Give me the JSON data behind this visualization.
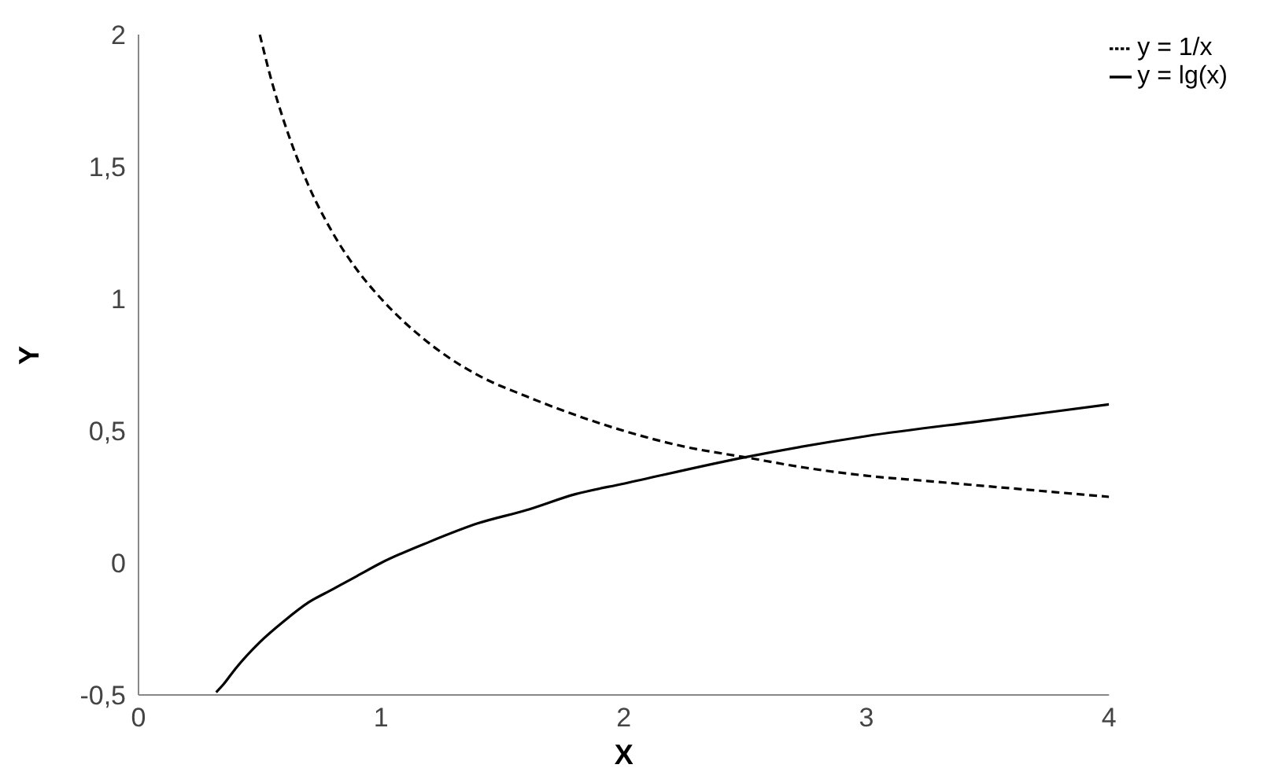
{
  "chart_data": {
    "type": "line",
    "xlabel": "X",
    "ylabel": "Y",
    "xlim": [
      0,
      4
    ],
    "xticks": [
      0,
      1,
      2,
      3,
      4
    ],
    "ylim": [
      -0.5,
      2
    ],
    "yticks": [
      {
        "value": -0.5,
        "label": "-0,5"
      },
      0,
      {
        "value": 0.5,
        "label": "0,5"
      },
      1,
      {
        "value": 1.5,
        "label": "1,5"
      },
      2
    ],
    "grid": false,
    "legend": "top right",
    "marker": "none",
    "series": [
      {
        "name": "y = 1/x",
        "color": "#000000",
        "line_style": "dashed",
        "x": [
          0.5,
          0.55,
          0.6,
          0.7,
          0.8,
          0.9,
          1,
          1.2,
          1.4,
          1.6,
          1.8,
          2,
          2.25,
          2.5,
          2.75,
          3,
          3.25,
          3.5,
          3.75,
          4
        ],
        "values": [
          2,
          1.82,
          1.67,
          1.43,
          1.25,
          1.11,
          1,
          0.83,
          0.71,
          0.63,
          0.56,
          0.5,
          0.44,
          0.4,
          0.36,
          0.33,
          0.31,
          0.29,
          0.27,
          0.25
        ]
      },
      {
        "name": "y = lg(x)",
        "color": "#000000",
        "line_style": "solid",
        "x": [
          0.32,
          0.35,
          0.4,
          0.5,
          0.6,
          0.7,
          0.8,
          0.9,
          1,
          1.2,
          1.4,
          1.6,
          1.8,
          2,
          2.5,
          3,
          3.5,
          4
        ],
        "values": [
          -0.49,
          -0.46,
          -0.4,
          -0.3,
          -0.22,
          -0.15,
          -0.1,
          -0.05,
          0,
          0.08,
          0.15,
          0.2,
          0.26,
          0.3,
          0.4,
          0.48,
          0.54,
          0.6
        ]
      }
    ]
  }
}
